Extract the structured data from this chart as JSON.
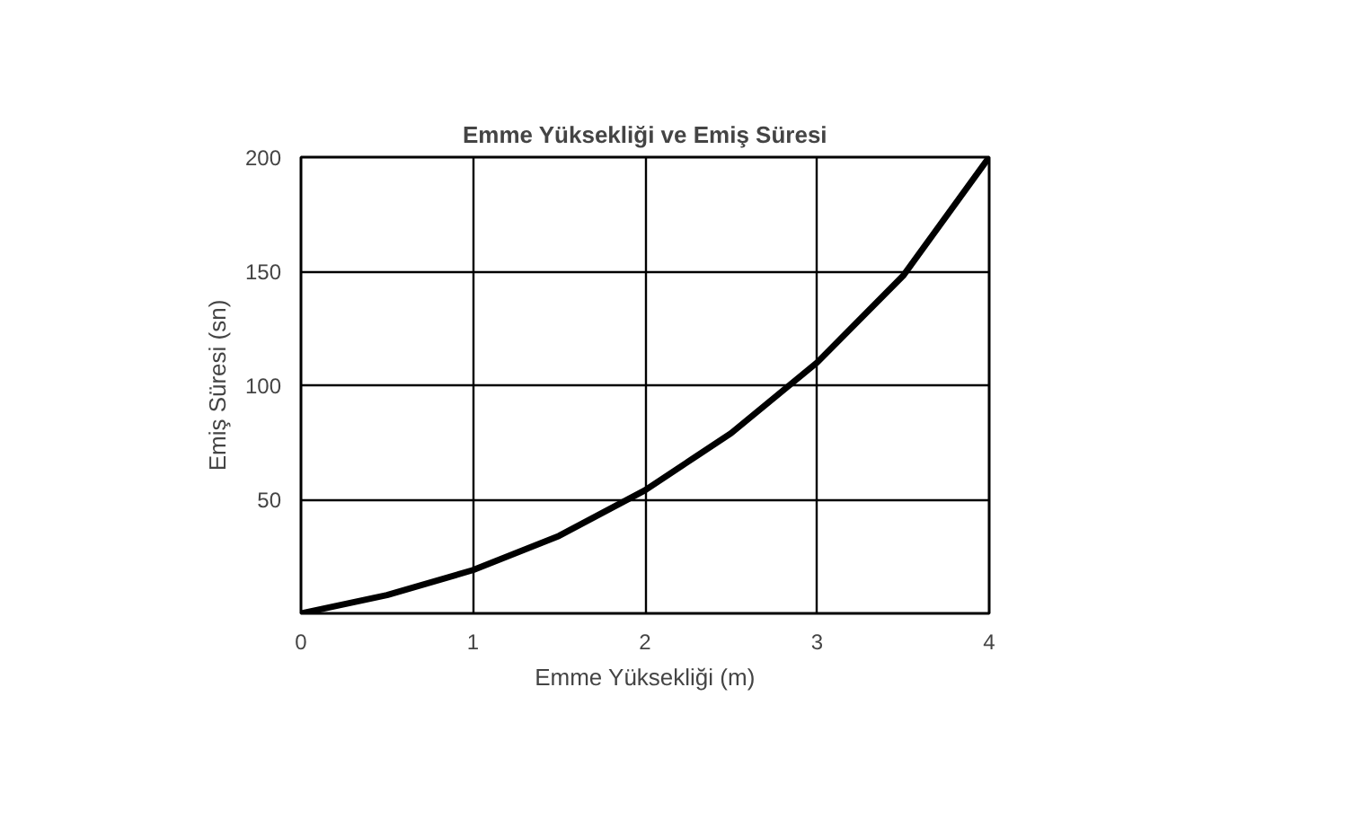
{
  "chart_data": {
    "type": "line",
    "title": "Emme Yüksekliği ve Emiş Süresi",
    "xlabel": "Emme Yüksekliği (m)",
    "ylabel": "Emiş Süresi (sn)",
    "x": [
      0,
      0.5,
      1,
      1.5,
      2,
      2.5,
      3,
      3.5,
      4
    ],
    "series": [
      {
        "color": "#000000",
        "values": [
          0,
          8,
          19,
          34,
          54,
          79,
          110,
          148,
          200
        ]
      }
    ],
    "xlim": [
      0,
      4
    ],
    "ylim": [
      0,
      200
    ],
    "xticks": [
      0,
      1,
      2,
      3,
      4
    ],
    "yticks": [
      {
        "value": 0,
        "label": null
      },
      50,
      100,
      150,
      200
    ],
    "grid": true,
    "marker": "none",
    "line_style": "solid"
  }
}
